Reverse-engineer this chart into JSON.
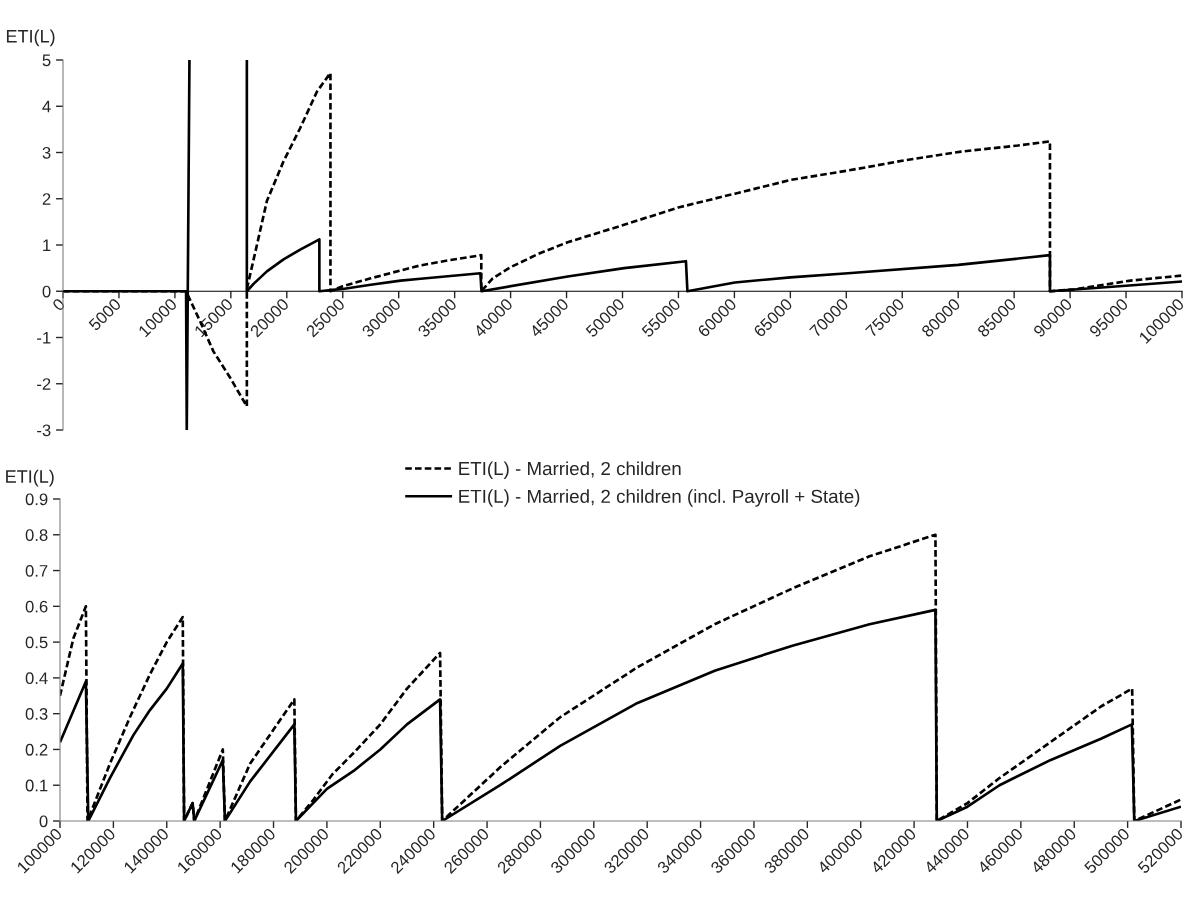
{
  "chart_data": [
    {
      "type": "line",
      "ylabel": "ETI(L)",
      "xlim": [
        0,
        100000
      ],
      "ylim": [
        -3,
        5
      ],
      "xticks": [
        0,
        5000,
        10000,
        15000,
        20000,
        25000,
        30000,
        35000,
        40000,
        45000,
        50000,
        55000,
        60000,
        65000,
        70000,
        75000,
        80000,
        85000,
        90000,
        95000,
        100000
      ],
      "yticks": [
        -3,
        -2,
        -1,
        0,
        1,
        2,
        3,
        4,
        5
      ],
      "grid": false,
      "series": [
        {
          "color": "#000000",
          "line_style": "dashed",
          "x": [
            0,
            11000,
            12250,
            13440,
            14940,
            16430,
            16430,
            17330,
            18220,
            19710,
            21200,
            22700,
            23900,
            23900,
            25000,
            27500,
            30170,
            31960,
            34500,
            37380,
            37380,
            38400,
            40000,
            42400,
            45100,
            49930,
            54980,
            60040,
            65090,
            70150,
            75200,
            80260,
            85320,
            88200,
            88200,
            90400,
            95400,
            100000
          ],
          "values": [
            0,
            0,
            -0.65,
            -1.3,
            -1.87,
            -2.49,
            0.05,
            1.0,
            1.95,
            2.81,
            3.53,
            4.32,
            4.72,
            0,
            0.11,
            0.28,
            0.45,
            0.56,
            0.67,
            0.78,
            0,
            0.28,
            0.52,
            0.8,
            1.06,
            1.42,
            1.81,
            2.11,
            2.41,
            2.61,
            2.83,
            3.02,
            3.15,
            3.24,
            0,
            0.04,
            0.23,
            0.34
          ]
        },
        {
          "color": "#000000",
          "line_style": "solid",
          "x": [
            0,
            11000,
            11060,
            11300,
            13800,
            16430,
            16430,
            17030,
            18220,
            19710,
            21200,
            22910,
            22910,
            25000,
            27500,
            30170,
            31960,
            37300,
            37400,
            45100,
            50150,
            55670,
            55800,
            60040,
            65000,
            70150,
            80000,
            88200,
            88200,
            95000,
            100000
          ],
          "values": [
            0,
            0,
            -3,
            5,
            null,
            5,
            0,
            0.16,
            0.43,
            0.69,
            0.9,
            1.12,
            0,
            0.05,
            0.14,
            0.23,
            0.27,
            0.39,
            0,
            0.32,
            0.5,
            0.65,
            0,
            0.19,
            0.3,
            0.39,
            0.57,
            0.78,
            0,
            0.12,
            0.21
          ]
        }
      ]
    },
    {
      "type": "line",
      "ylabel": "ETI(L)",
      "xlim": [
        100000,
        520000
      ],
      "ylim": [
        0,
        0.9
      ],
      "xticks": [
        100000,
        120000,
        140000,
        160000,
        180000,
        200000,
        220000,
        240000,
        260000,
        280000,
        300000,
        320000,
        340000,
        360000,
        380000,
        400000,
        420000,
        440000,
        460000,
        480000,
        500000,
        520000
      ],
      "yticks": [
        0,
        0.1,
        0.2,
        0.3,
        0.4,
        0.5,
        0.6,
        0.7,
        0.8,
        0.9
      ],
      "grid": false,
      "legend": "top",
      "series": [
        {
          "name": "ETI(L) - Married, 2 children",
          "color": "#000000",
          "line_style": "dashed",
          "x": [
            100000,
            105000,
            109700,
            110300,
            118700,
            126200,
            133700,
            140000,
            146000,
            146500,
            149700,
            150300,
            161000,
            161800,
            171200,
            187800,
            188400,
            195000,
            202000,
            210000,
            220000,
            230000,
            242400,
            243200,
            264900,
            287400,
            316400,
            345300,
            374400,
            403300,
            428000,
            428500,
            440000,
            452000,
            471000,
            490000,
            501700,
            502500,
            520000
          ],
          "values": [
            0.35,
            0.51,
            0.6,
            0,
            0.16,
            0.29,
            0.41,
            0.5,
            0.57,
            0,
            0.05,
            0,
            0.2,
            0,
            0.16,
            0.34,
            0,
            0.06,
            0.13,
            0.19,
            0.27,
            0.37,
            0.47,
            0,
            0.15,
            0.29,
            0.43,
            0.55,
            0.65,
            0.74,
            0.8,
            0,
            0.05,
            0.12,
            0.22,
            0.32,
            0.37,
            0,
            0.06
          ]
        },
        {
          "name": "ETI(L) - Married, 2 children (incl. Payroll + State)",
          "color": "#000000",
          "line_style": "solid",
          "x": [
            100000,
            109700,
            110600,
            118700,
            127500,
            133700,
            140000,
            146000,
            146500,
            149700,
            150300,
            161000,
            161800,
            171200,
            187800,
            188400,
            200000,
            210000,
            220000,
            230000,
            242400,
            243200,
            264900,
            287400,
            316400,
            345300,
            374400,
            403300,
            428000,
            428500,
            440000,
            452000,
            471000,
            490000,
            501600,
            502500,
            520000
          ],
          "values": [
            0.22,
            0.39,
            0,
            0.12,
            0.24,
            0.31,
            0.37,
            0.44,
            0,
            0.05,
            0,
            0.17,
            0,
            0.11,
            0.27,
            0,
            0.09,
            0.14,
            0.2,
            0.27,
            0.34,
            0,
            0.1,
            0.21,
            0.33,
            0.42,
            0.49,
            0.55,
            0.59,
            0,
            0.04,
            0.1,
            0.17,
            0.23,
            0.27,
            0,
            0.04
          ]
        }
      ]
    }
  ]
}
